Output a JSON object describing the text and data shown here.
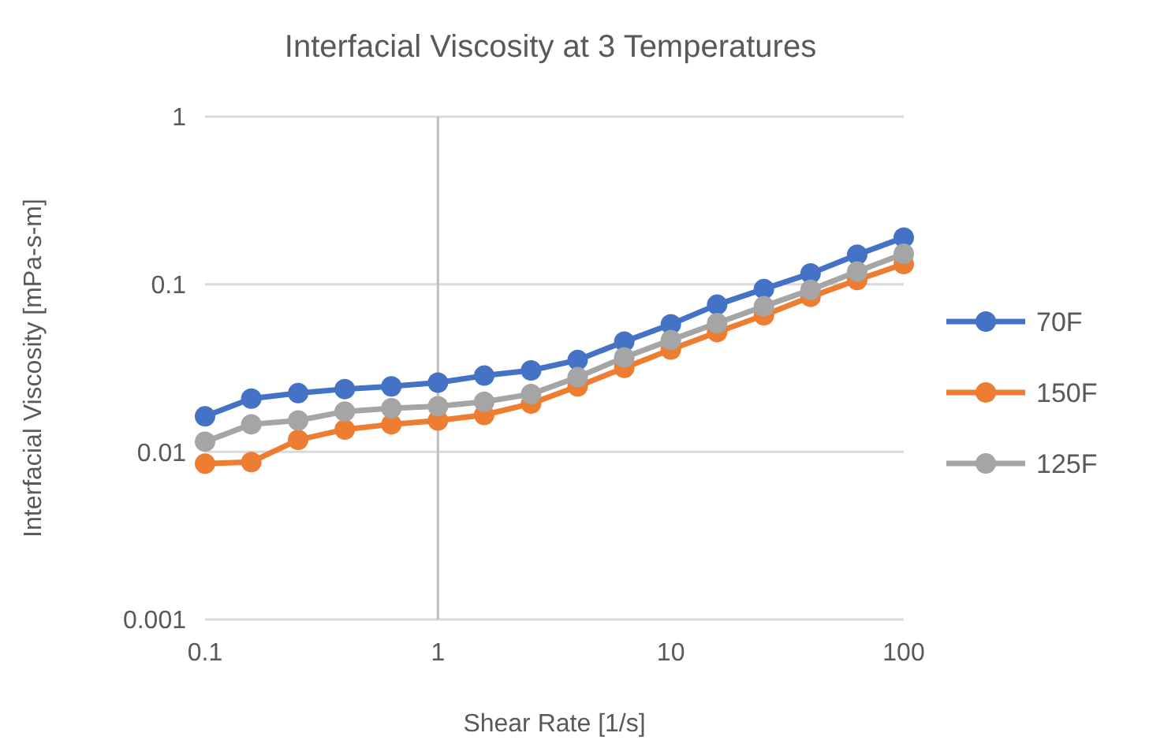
{
  "chart_data": {
    "type": "line",
    "title": "Interfacial Viscosity at 3 Temperatures",
    "xlabel": "Shear Rate [1/s]",
    "ylabel": "Interfacial Viscosity [mPa-s-m]",
    "log": "xy",
    "x": [
      0.1,
      0.158,
      0.251,
      0.398,
      0.631,
      1,
      1.58,
      2.51,
      3.98,
      6.31,
      10,
      15.8,
      25.1,
      39.8,
      63.1,
      100
    ],
    "xlim": [
      0.1,
      100
    ],
    "xticks": [
      0.1,
      1,
      10,
      100
    ],
    "ylim": [
      0.001,
      1
    ],
    "yticks": [
      0.001,
      0.01,
      0.1,
      1
    ],
    "grid": "y",
    "legend": "right",
    "marker": "circle",
    "line_style": "solid",
    "ref_lines": [
      {
        "axis": "x",
        "value": 1,
        "color": "#bfbfbf"
      }
    ],
    "series": [
      {
        "name": "70F",
        "color": "#4472c4",
        "values": [
          0.0163,
          0.0208,
          0.0224,
          0.0237,
          0.0246,
          0.0259,
          0.0285,
          0.0306,
          0.0353,
          0.0455,
          0.0577,
          0.0755,
          0.0937,
          0.116,
          0.15,
          0.19
        ]
      },
      {
        "name": "150F",
        "color": "#ed7d31",
        "values": [
          0.0085,
          0.0087,
          0.0118,
          0.0136,
          0.0146,
          0.0154,
          0.0166,
          0.0194,
          0.0246,
          0.0317,
          0.0408,
          0.0518,
          0.0653,
          0.0841,
          0.106,
          0.132
        ]
      },
      {
        "name": "125F",
        "color": "#a5a5a5",
        "values": [
          0.0115,
          0.0146,
          0.0154,
          0.0174,
          0.0182,
          0.0187,
          0.0199,
          0.0221,
          0.0279,
          0.0366,
          0.0465,
          0.0586,
          0.0739,
          0.0925,
          0.119,
          0.152
        ]
      }
    ]
  }
}
